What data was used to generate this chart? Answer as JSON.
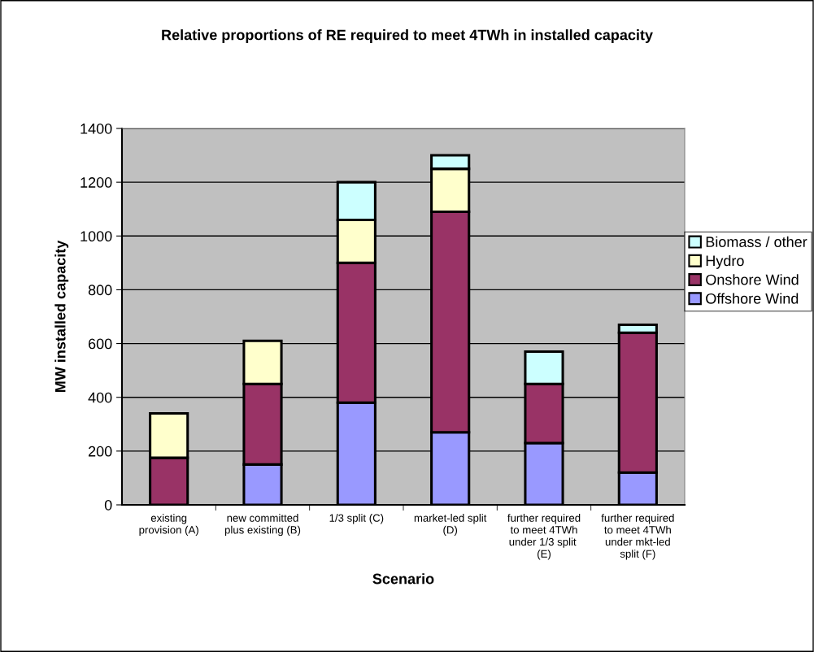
{
  "chart_data": {
    "type": "bar",
    "title": "Relative proportions of RE required to meet 4TWh in installed capacity",
    "xlabel": "Scenario",
    "ylabel": "MW installed capacity",
    "categories": [
      "existing provision (A)",
      "new committed plus existing (B)",
      "1/3 split (C)",
      "market-led split (D)",
      "further required to meet 4TWh under 1/3 split  (E)",
      "further required to meet 4TWh under mkt-led split (F)"
    ],
    "series": [
      {
        "name": "Offshore Wind",
        "color": "#9999ff",
        "values": [
          0,
          150,
          380,
          270,
          230,
          120
        ]
      },
      {
        "name": "Onshore Wind",
        "color": "#993366",
        "values": [
          175,
          300,
          520,
          820,
          220,
          520
        ]
      },
      {
        "name": "Hydro",
        "color": "#ffffcc",
        "values": [
          165,
          160,
          160,
          160,
          0,
          0
        ]
      },
      {
        "name": "Biomass / other",
        "color": "#ccffff",
        "values": [
          0,
          0,
          140,
          50,
          120,
          30
        ]
      }
    ],
    "stacked": true,
    "ylim": [
      0,
      1400
    ],
    "yticks": [
      0,
      200,
      400,
      600,
      800,
      1000,
      1200,
      1400
    ],
    "grid": "y",
    "legend": "right"
  }
}
